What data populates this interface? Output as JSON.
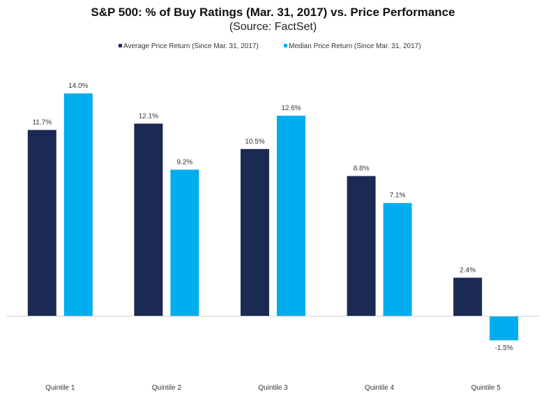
{
  "chart_data": {
    "type": "bar",
    "title": "S&P 500: % of Buy Ratings (Mar. 31, 2017) vs. Price Performance",
    "subtitle": "(Source: FactSet)",
    "xlabel": "",
    "ylabel": "",
    "categories": [
      "Quintile 1",
      "Quintile 2",
      "Quintile 3",
      "Quintile 4",
      "Quintile 5"
    ],
    "series": [
      {
        "name": "Average Price Return (Since Mar. 31, 2017)",
        "color": "#1b2a52",
        "values": [
          11.7,
          12.1,
          10.5,
          8.8,
          2.4
        ],
        "labels": [
          "11.7%",
          "12.1%",
          "10.5%",
          "8.8%",
          "2.4%"
        ]
      },
      {
        "name": "Median Price Return (Since Mar. 31, 2017)",
        "color": "#00adef",
        "values": [
          14.0,
          9.2,
          12.6,
          7.1,
          -1.5
        ],
        "labels": [
          "14.0%",
          "9.2%",
          "12.6%",
          "7.1%",
          "-1.5%"
        ]
      }
    ],
    "ylim": [
      -3.5,
      15.5
    ],
    "grid": false,
    "legend": "top-center",
    "axis_color": "#d0d0d0"
  }
}
